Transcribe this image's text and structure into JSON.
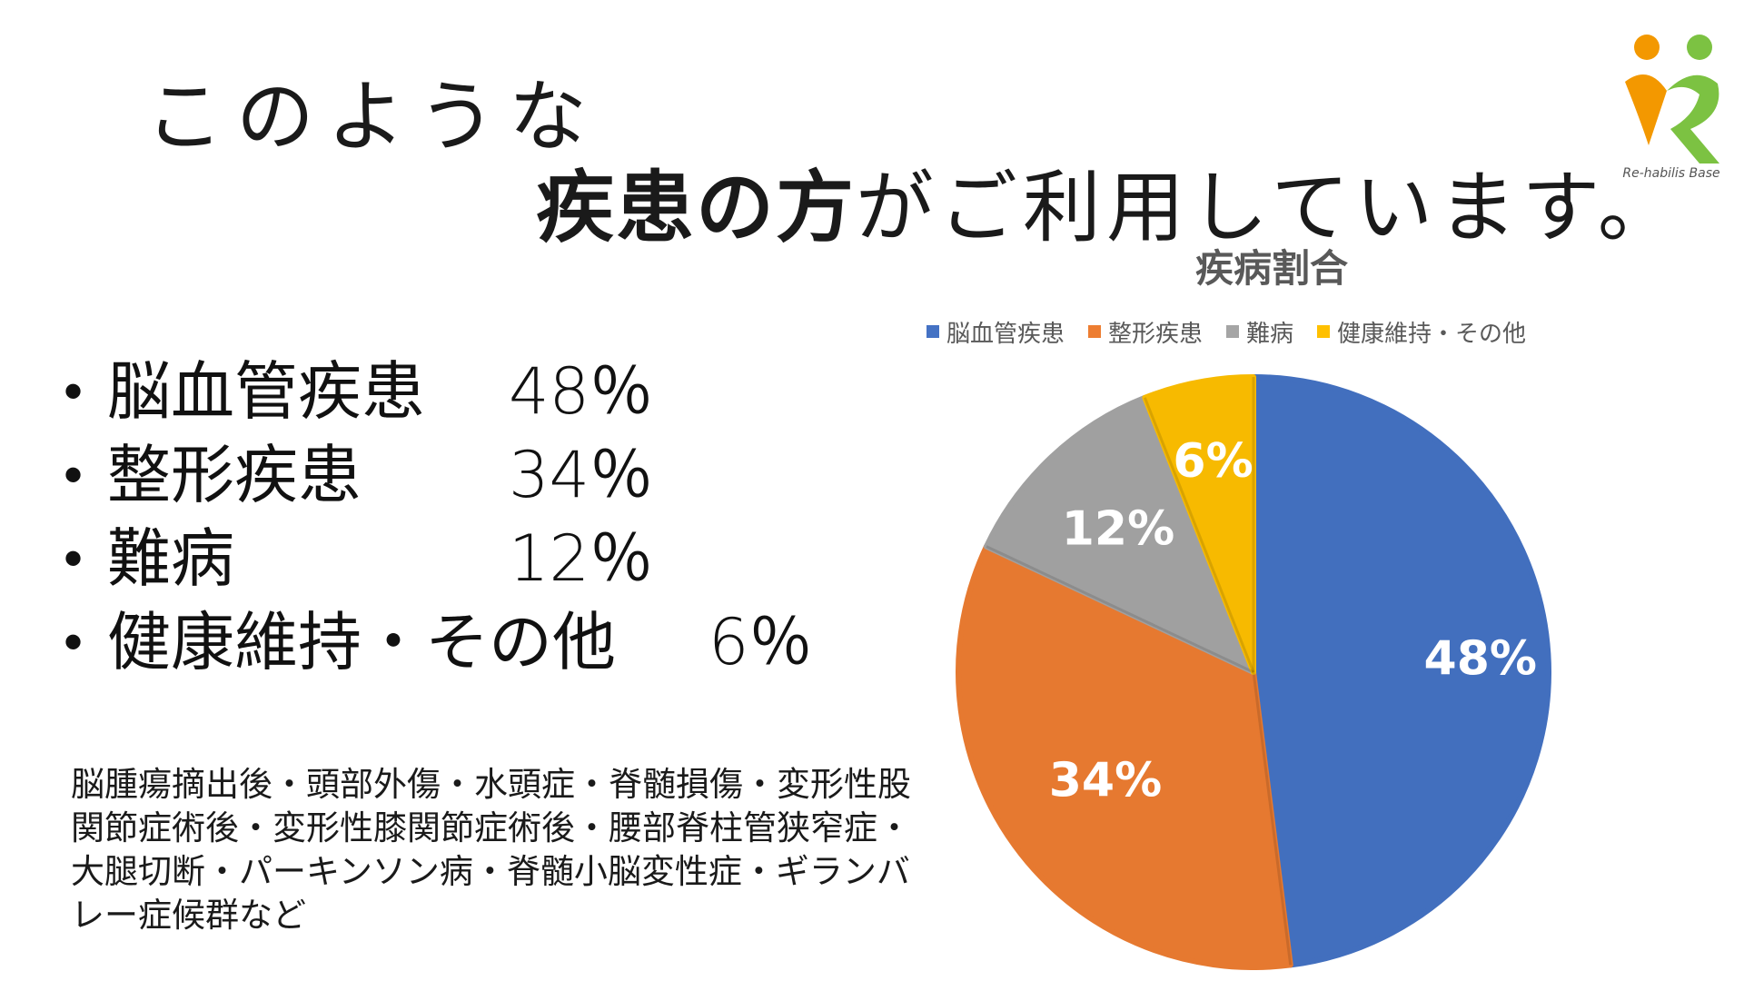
{
  "header": {
    "line1": "このような",
    "line2_bold": "疾患の方",
    "line2_rest": "がご利用しています。"
  },
  "logo": {
    "text": "Re-habilis Base",
    "colors": [
      "#f39800",
      "#7cc242"
    ]
  },
  "disease_list": [
    {
      "name": "脳血管疾患",
      "percent": "48％"
    },
    {
      "name": "整形疾患",
      "percent": "34％"
    },
    {
      "name": "難病",
      "percent": "12％"
    },
    {
      "name": "健康維持・その他",
      "percent": "6％"
    }
  ],
  "bullet": "•",
  "examples": "脳腫瘍摘出後・頭部外傷・水頭症・脊髄損傷・変形性股関節症術後・変形性膝関節症術後・腰部脊柱管狭窄症・大腿切断・パーキンソン病・脊髄小脳変性症・ギランバレー症候群など",
  "chart_data": {
    "type": "pie",
    "title": "疾病割合",
    "legend_position": "top",
    "categories": [
      "脳血管疾患",
      "整形疾患",
      "難病",
      "健康維持・その他"
    ],
    "values": [
      48,
      34,
      12,
      6
    ],
    "labels": [
      "48%",
      "34%",
      "12%",
      "6%"
    ],
    "colors": [
      "#4472c4",
      "#ed7d31",
      "#a5a5a5",
      "#ffc000"
    ]
  }
}
